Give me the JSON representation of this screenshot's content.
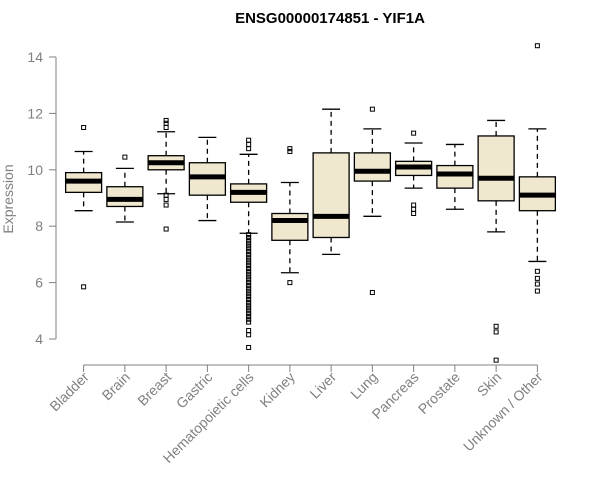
{
  "chart_data": {
    "type": "boxplot",
    "title": "ENSG00000174851 - YIF1A",
    "ylabel": "Expression",
    "xlabel": "",
    "ylim": [
      3.0,
      14.6
    ],
    "yticks": [
      4,
      6,
      8,
      10,
      12,
      14
    ],
    "grid": false,
    "colors": {
      "box_fill": "#efe8cf",
      "stroke": "#000000",
      "axis": "#808080",
      "text": "#808080"
    },
    "categories": [
      "Bladder",
      "Brain",
      "Breast",
      "Gastric",
      "Hematopoietic cells",
      "Kidney",
      "Liver",
      "Lung",
      "Pancreas",
      "Prostate",
      "Skin",
      "Unknown / Other"
    ],
    "boxes": [
      {
        "category": "Bladder",
        "whisker_low": 8.55,
        "q1": 9.2,
        "median": 9.6,
        "q3": 9.9,
        "whisker_high": 10.65,
        "outliers": [
          11.5,
          5.85
        ]
      },
      {
        "category": "Brain",
        "whisker_low": 8.15,
        "q1": 8.7,
        "median": 8.95,
        "q3": 9.4,
        "whisker_high": 10.05,
        "outliers": [
          10.45
        ]
      },
      {
        "category": "Breast",
        "whisker_low": 9.15,
        "q1": 10.0,
        "median": 10.25,
        "q3": 10.5,
        "whisker_high": 11.35,
        "outliers": [
          11.5,
          11.65,
          11.75,
          9.1,
          8.95,
          8.75,
          7.9
        ]
      },
      {
        "category": "Gastric",
        "whisker_low": 8.2,
        "q1": 9.1,
        "median": 9.75,
        "q3": 10.25,
        "whisker_high": 11.15,
        "outliers": []
      },
      {
        "category": "Hematopoietic cells",
        "whisker_low": 7.75,
        "q1": 8.85,
        "median": 9.2,
        "q3": 9.5,
        "whisker_high": 10.55,
        "outliers": [
          11.05,
          10.9,
          10.75,
          7.7,
          7.6,
          7.5,
          7.4,
          7.3,
          7.2,
          7.1,
          7.0,
          6.9,
          6.8,
          6.7,
          6.6,
          6.5,
          6.4,
          6.3,
          6.2,
          6.1,
          6.0,
          5.9,
          5.8,
          5.7,
          5.6,
          5.5,
          5.4,
          5.3,
          5.2,
          5.1,
          5.0,
          4.9,
          4.8,
          4.7,
          4.6,
          4.3,
          4.15,
          3.7
        ]
      },
      {
        "category": "Kidney",
        "whisker_low": 6.35,
        "q1": 7.5,
        "median": 8.2,
        "q3": 8.45,
        "whisker_high": 9.55,
        "outliers": [
          10.75,
          10.65,
          6.0
        ]
      },
      {
        "category": "Liver",
        "whisker_low": 7.0,
        "q1": 7.6,
        "median": 8.35,
        "q3": 10.6,
        "whisker_high": 12.15,
        "outliers": []
      },
      {
        "category": "Lung",
        "whisker_low": 8.35,
        "q1": 9.6,
        "median": 9.95,
        "q3": 10.6,
        "whisker_high": 11.45,
        "outliers": [
          12.15,
          5.65
        ]
      },
      {
        "category": "Pancreas",
        "whisker_low": 9.35,
        "q1": 9.8,
        "median": 10.1,
        "q3": 10.3,
        "whisker_high": 10.95,
        "outliers": [
          11.3,
          8.75,
          8.6,
          8.45
        ]
      },
      {
        "category": "Prostate",
        "whisker_low": 8.6,
        "q1": 9.35,
        "median": 9.85,
        "q3": 10.15,
        "whisker_high": 10.9,
        "outliers": []
      },
      {
        "category": "Skin",
        "whisker_low": 7.8,
        "q1": 8.9,
        "median": 9.7,
        "q3": 11.2,
        "whisker_high": 11.75,
        "outliers": [
          4.45,
          4.25,
          3.25
        ]
      },
      {
        "category": "Unknown / Other",
        "whisker_low": 6.75,
        "q1": 8.55,
        "median": 9.1,
        "q3": 9.75,
        "whisker_high": 11.45,
        "outliers": [
          14.4,
          6.4,
          6.15,
          5.95,
          5.7
        ]
      }
    ]
  }
}
